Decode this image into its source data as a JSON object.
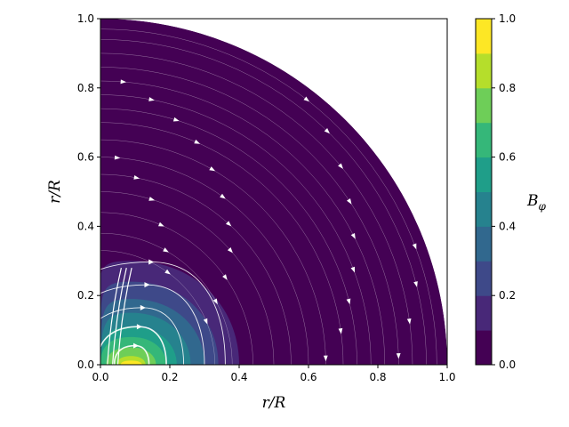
{
  "chart_data": {
    "type": "heatmap",
    "subtype": "filled-contour-with-streamlines",
    "domain_shape": "quarter-disc",
    "title": "",
    "xlabel": "r/R",
    "ylabel": "r/R",
    "xlim": [
      0.0,
      1.0
    ],
    "ylim": [
      0.0,
      1.0
    ],
    "xticks": [
      "0.0",
      "0.2",
      "0.4",
      "0.6",
      "0.8",
      "1.0"
    ],
    "yticks": [
      "0.0",
      "0.2",
      "0.4",
      "0.6",
      "0.8",
      "1.0"
    ],
    "grid": false,
    "colorbar": {
      "label": "B_φ",
      "range": [
        0.0,
        1.0
      ],
      "levels": [
        0.0,
        0.1,
        0.2,
        0.3,
        0.4,
        0.5,
        0.6,
        0.7,
        0.8,
        0.9,
        1.0
      ],
      "tick_labels": [
        "0.0",
        "0.2",
        "0.4",
        "0.6",
        "0.8",
        "1.0"
      ],
      "colors": [
        "#440154",
        "#482878",
        "#3e4989",
        "#31688e",
        "#26828e",
        "#1f9e89",
        "#35b779",
        "#6ece58",
        "#b5de2b",
        "#fde725"
      ]
    },
    "field_peak": {
      "x": 0.09,
      "y": 0.0,
      "value": 1.0
    },
    "contour_extent": [
      {
        "level": 0.1,
        "x_max": 0.4,
        "y_max": 0.3
      },
      {
        "level": 0.2,
        "x_max": 0.34,
        "y_max": 0.24
      },
      {
        "level": 0.3,
        "x_max": 0.3,
        "y_max": 0.19
      },
      {
        "level": 0.4,
        "x_max": 0.26,
        "y_max": 0.15
      },
      {
        "level": 0.5,
        "x_max": 0.22,
        "y_max": 0.11
      },
      {
        "level": 0.6,
        "x_max": 0.19,
        "y_max": 0.08
      },
      {
        "level": 0.7,
        "x_max": 0.16,
        "y_max": 0.05
      },
      {
        "level": 0.8,
        "x_max": 0.13,
        "y_max": 0.025
      },
      {
        "level": 0.9,
        "x_max": 0.12,
        "y_max": 0.012
      }
    ],
    "streamline_color": "#ffffff"
  }
}
